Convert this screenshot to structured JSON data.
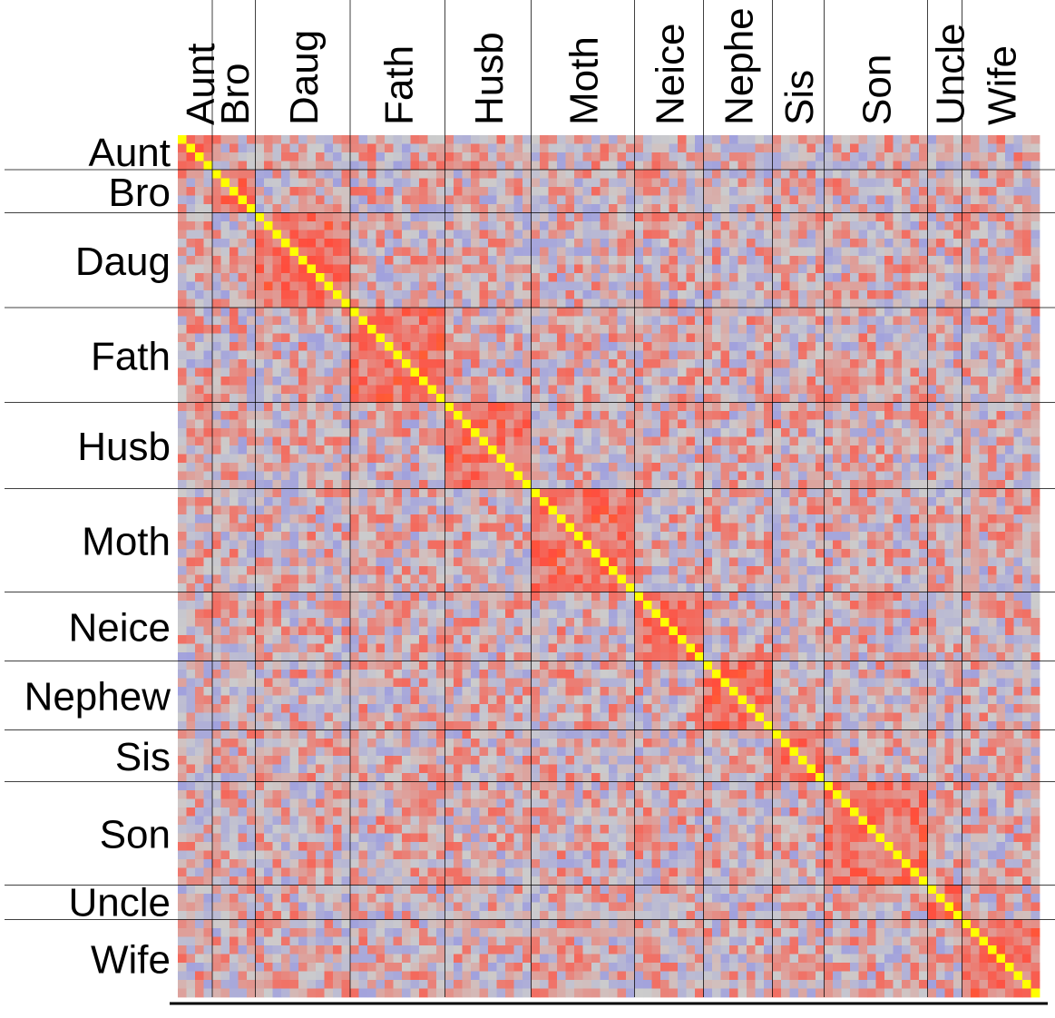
{
  "chart_data": {
    "type": "heatmap",
    "title": "",
    "xlabel": "",
    "ylabel": "",
    "row_labels": [
      "Aunt",
      "Bro",
      "Daug",
      "Fath",
      "Husb",
      "Moth",
      "Neice",
      "Nephew",
      "Sis",
      "Son",
      "Uncle",
      "Wife"
    ],
    "column_labels": [
      "Aunt",
      "Bro",
      "Daug",
      "Fath",
      "Husb",
      "Moth",
      "Neice",
      "Nephe",
      "Sis",
      "Son",
      "Uncle",
      "Wife"
    ],
    "group_sizes": [
      4,
      5,
      11,
      11,
      10,
      12,
      8,
      8,
      6,
      12,
      4,
      9
    ],
    "diagonal_value": 1.0,
    "within_group_mean": 0.55,
    "between_group_mean": 0.0,
    "value_range": [
      -1,
      1
    ],
    "colors": {
      "low": "#6f6ff0",
      "mid": "#cccccc",
      "high": "#ff4d3d",
      "peak": "#ff8c1a",
      "diagonal": "#ffff00",
      "gridlines": "#000000"
    },
    "grid": true
  }
}
